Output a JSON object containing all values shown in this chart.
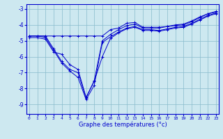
{
  "xlabel": "Graphe des températures (°c)",
  "background_color": "#cde8f0",
  "grid_color": "#88bbcc",
  "line_color": "#0000cc",
  "spine_color": "#0000cc",
  "label_color": "#0000cc",
  "x_ticks": [
    0,
    1,
    2,
    3,
    4,
    5,
    6,
    7,
    8,
    9,
    10,
    11,
    12,
    13,
    14,
    15,
    16,
    17,
    18,
    19,
    20,
    21,
    22,
    23
  ],
  "y_ticks": [
    -9,
    -8,
    -7,
    -6,
    -5,
    -4,
    -3
  ],
  "ylim": [
    -9.6,
    -2.7
  ],
  "xlim": [
    -0.3,
    23.3
  ],
  "lines": [
    [
      -4.7,
      -4.7,
      -4.7,
      -4.7,
      -4.7,
      -4.7,
      -4.7,
      -4.7,
      -4.7,
      -4.7,
      -4.3,
      -4.2,
      -3.9,
      -3.85,
      -4.15,
      -4.15,
      -4.15,
      -4.1,
      -4.0,
      -3.95,
      -3.75,
      -3.5,
      -3.3,
      -3.15
    ],
    [
      -4.7,
      -4.7,
      -4.7,
      -5.5,
      -6.3,
      -6.8,
      -7.0,
      -8.6,
      -7.5,
      -5.0,
      -4.6,
      -4.3,
      -4.05,
      -3.95,
      -4.2,
      -4.2,
      -4.2,
      -4.1,
      -4.05,
      -4.0,
      -3.8,
      -3.55,
      -3.3,
      -3.2
    ],
    [
      -4.7,
      -4.7,
      -4.8,
      -5.6,
      -6.4,
      -6.9,
      -7.3,
      -8.7,
      -7.8,
      -5.1,
      -4.75,
      -4.45,
      -4.2,
      -4.1,
      -4.3,
      -4.3,
      -4.35,
      -4.25,
      -4.15,
      -4.1,
      -3.9,
      -3.65,
      -3.4,
      -3.25
    ],
    [
      -4.8,
      -4.8,
      -4.9,
      -5.7,
      -5.85,
      -6.5,
      -6.8,
      -8.55,
      -7.55,
      -6.0,
      -4.85,
      -4.5,
      -4.25,
      -4.15,
      -4.35,
      -4.35,
      -4.4,
      -4.3,
      -4.2,
      -4.15,
      -3.95,
      -3.7,
      -3.45,
      -3.3
    ]
  ]
}
